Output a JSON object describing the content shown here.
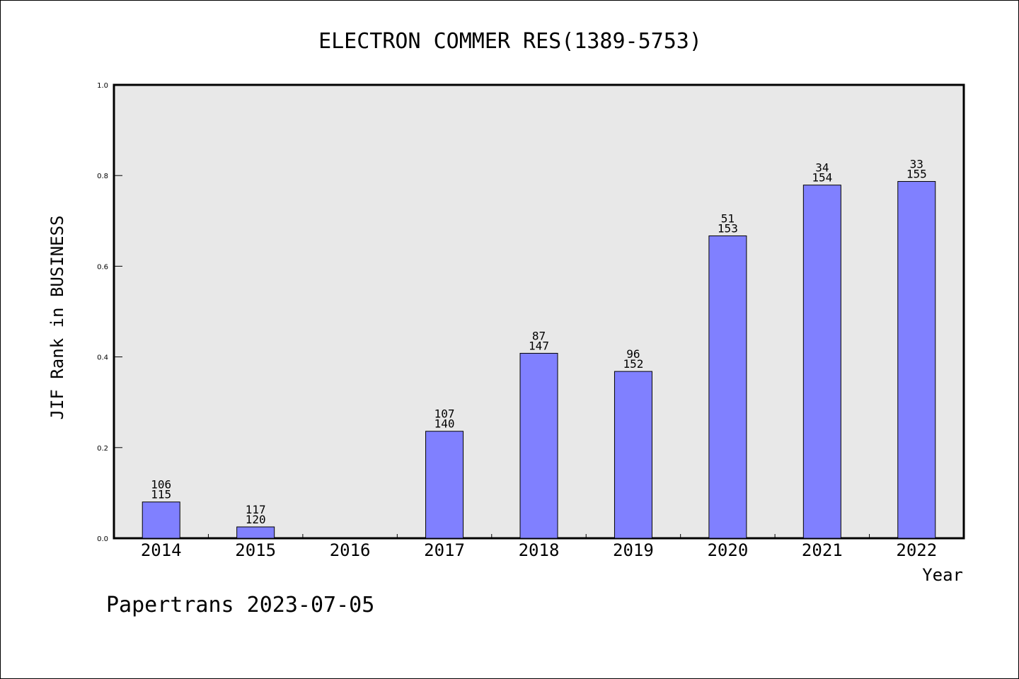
{
  "chart_data": {
    "type": "bar",
    "title": "ELECTRON COMMER RES(1389-5753)",
    "xlabel": "Year",
    "ylabel": "JIF Rank in BUSINESS",
    "categories": [
      "2014",
      "2015",
      "2016",
      "2017",
      "2018",
      "2019",
      "2020",
      "2021",
      "2022"
    ],
    "values": [
      0.08,
      0.025,
      null,
      0.236,
      0.408,
      0.368,
      0.667,
      0.779,
      0.787
    ],
    "rank": [
      "106",
      "117",
      null,
      "107",
      "87",
      "96",
      "51",
      "34",
      "33"
    ],
    "total": [
      "115",
      "120",
      null,
      "140",
      "147",
      "152",
      "153",
      "154",
      "155"
    ],
    "ylim": [
      0,
      1.0
    ],
    "yticks": [
      "0.0",
      "0.2",
      "0.4",
      "0.6",
      "0.8",
      "1.0"
    ],
    "grid": false,
    "bar_color": "#8080ff",
    "plot_background": "#e8e8e8"
  },
  "footer": "Papertrans 2023-07-05"
}
